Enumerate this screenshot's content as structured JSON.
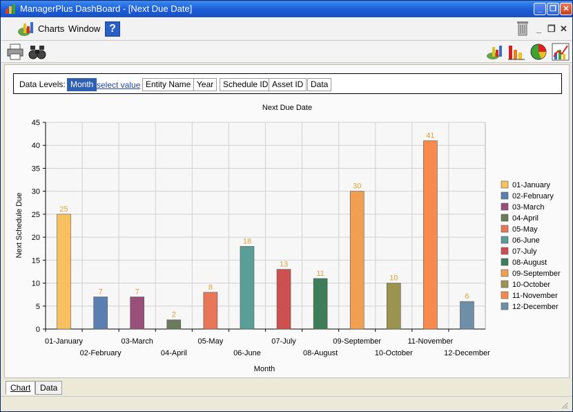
{
  "window": {
    "title": "ManagerPlus DashBoard - [Next Due Date]",
    "minimize_label": "_",
    "restore_label": "❐",
    "close_label": "✕"
  },
  "menubar": {
    "charts_label": "Charts",
    "window_label": "Window",
    "help_label": "?",
    "mdi_minimize": "_",
    "mdi_restore": "❐",
    "mdi_close": "✕"
  },
  "toolbar": {
    "left_icons": [
      "printer-icon",
      "binoculars-icon"
    ],
    "right_icons": [
      "chart-wizard-icon",
      "bar-chart-icon",
      "pie-chart-icon",
      "line-chart-icon"
    ]
  },
  "data_levels": {
    "label": "Data Levels:",
    "active": "Month",
    "select_link": "select value",
    "items": [
      "Entity Name",
      "Year",
      "Schedule ID",
      "Asset ID",
      "Data"
    ]
  },
  "tabs": [
    "Chart",
    "Data"
  ],
  "colors": {
    "titlebar": "#1c5fd8",
    "active_level": "#2f5fb0",
    "data_label": "#e0a030"
  },
  "chart_data": {
    "type": "bar",
    "title": "Next Due Date",
    "xlabel": "Month",
    "ylabel": "Next Schedule Due",
    "ylim": [
      0,
      45
    ],
    "yticks": [
      0,
      5,
      10,
      15,
      20,
      25,
      30,
      35,
      40,
      45
    ],
    "grid": true,
    "legend_position": "right",
    "categories": [
      "01-January",
      "02-February",
      "03-March",
      "04-April",
      "05-May",
      "06-June",
      "07-July",
      "08-August",
      "09-September",
      "10-October",
      "11-November",
      "12-December"
    ],
    "values": [
      25,
      7,
      7,
      2,
      8,
      18,
      13,
      11,
      30,
      10,
      41,
      6
    ],
    "bar_colors": [
      "#f8c060",
      "#5a7fb0",
      "#9a4f7a",
      "#6a7a5a",
      "#e8775a",
      "#5a9e98",
      "#cc5050",
      "#3e7c5a",
      "#f0a050",
      "#9a9450",
      "#f88a50",
      "#6f8fa8"
    ]
  }
}
